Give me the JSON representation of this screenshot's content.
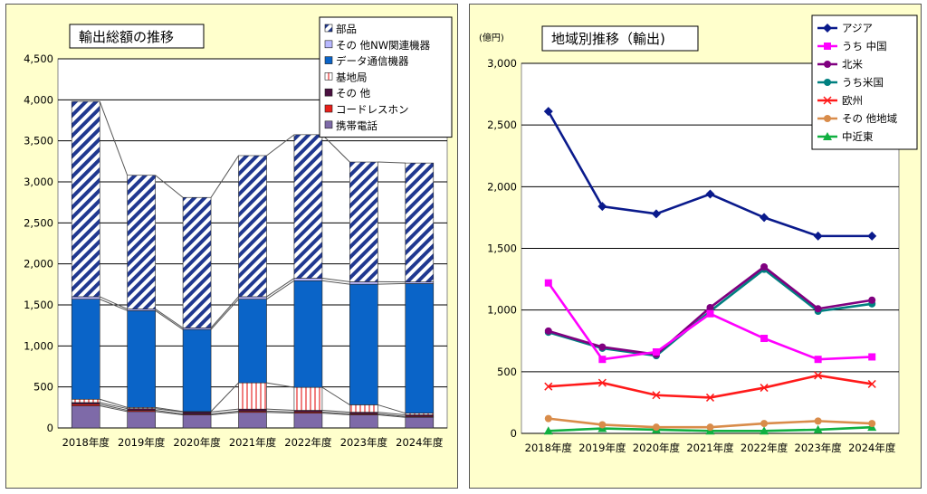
{
  "chart_data": [
    {
      "type": "bar",
      "stacked": true,
      "title": "輸出総額の推移",
      "categories": [
        "2018年度",
        "2019年度",
        "2020年度",
        "2021年度",
        "2022年度",
        "2023年度",
        "2024年度"
      ],
      "ylim": [
        0,
        4500
      ],
      "yticks": [
        "0",
        "500",
        "1,000",
        "1,500",
        "2,000",
        "2,500",
        "3,000",
        "3,500",
        "4,000",
        "4,500"
      ],
      "legend_position": "top-right",
      "series": [
        {
          "name": "携帯電話",
          "color": "#7e6aa8",
          "values": [
            270,
            200,
            160,
            190,
            180,
            160,
            130
          ]
        },
        {
          "name": "コードレスホン",
          "color": "#e8201a",
          "values": [
            20,
            15,
            10,
            15,
            15,
            12,
            10
          ]
        },
        {
          "name": "その 他",
          "color": "#4a1040",
          "values": [
            20,
            20,
            25,
            25,
            20,
            20,
            20
          ]
        },
        {
          "name": "基地局",
          "color": "#ffd0d0",
          "pattern": "vstripe-red",
          "values": [
            40,
            15,
            5,
            320,
            280,
            90,
            20
          ]
        },
        {
          "name": "データ通信機器",
          "color": "#0a64c8",
          "values": [
            1220,
            1180,
            1000,
            1020,
            1300,
            1470,
            1580
          ]
        },
        {
          "name": "その 他NW関連機器",
          "color": "#b8b8ff",
          "values": [
            30,
            20,
            20,
            30,
            30,
            30,
            20
          ]
        },
        {
          "name": "部品",
          "color": "#203890",
          "pattern": "diag-navy",
          "values": [
            2380,
            1630,
            1590,
            1720,
            1750,
            1460,
            1450
          ]
        }
      ]
    },
    {
      "type": "line",
      "title": "地域別推移（輸出",
      "unit_label": "(億円)",
      "categories": [
        "2018年度",
        "2019年度",
        "2020年度",
        "2021年度",
        "2022年度",
        "2023年度",
        "2024年度"
      ],
      "ylim": [
        0,
        3000
      ],
      "yticks": [
        "0",
        "500",
        "1,000",
        "1,500",
        "2,000",
        "2,500",
        "3,000"
      ],
      "legend_position": "top-right",
      "series": [
        {
          "name": "アジア",
          "color": "#0a1a8c",
          "marker": "diamond",
          "values": [
            2610,
            1840,
            1780,
            1940,
            1750,
            1600,
            1600
          ]
        },
        {
          "name": "うち 中国",
          "color": "#ff00ff",
          "marker": "square",
          "values": [
            1220,
            600,
            660,
            970,
            770,
            600,
            620
          ]
        },
        {
          "name": "北米",
          "color": "#800080",
          "marker": "circle",
          "values": [
            830,
            700,
            640,
            1020,
            1350,
            1010,
            1080
          ]
        },
        {
          "name": "うち米国",
          "color": "#008080",
          "marker": "circle",
          "values": [
            820,
            690,
            630,
            990,
            1330,
            990,
            1050
          ]
        },
        {
          "name": "欧州",
          "color": "#ff1a1a",
          "marker": "x",
          "values": [
            380,
            410,
            310,
            290,
            370,
            470,
            400
          ]
        },
        {
          "name": "その 他地域",
          "color": "#d98c4a",
          "marker": "circle",
          "values": [
            120,
            70,
            50,
            50,
            80,
            100,
            80
          ]
        },
        {
          "name": "中近東",
          "color": "#10b040",
          "marker": "triangle",
          "values": [
            20,
            40,
            30,
            20,
            20,
            30,
            50
          ]
        }
      ]
    }
  ]
}
